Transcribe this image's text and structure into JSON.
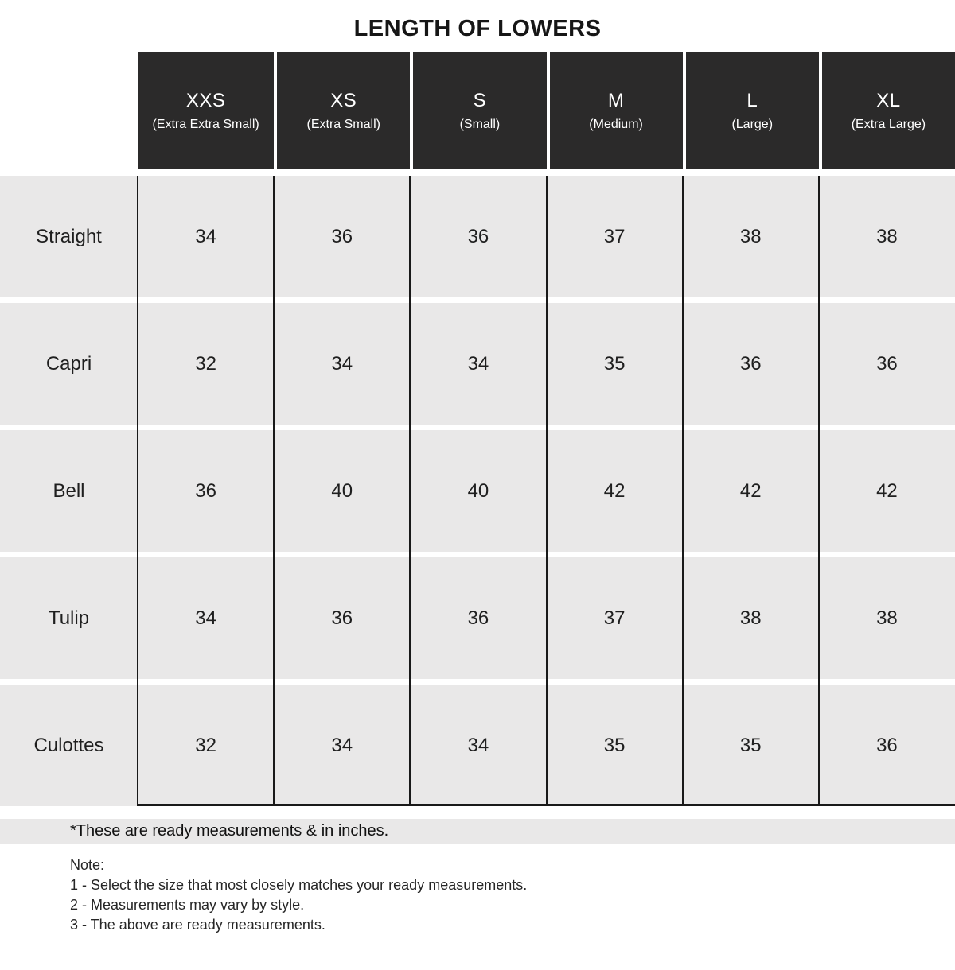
{
  "title": "LENGTH OF LOWERS",
  "table": {
    "columns": [
      {
        "size": "XXS",
        "full": "(Extra Extra Small)"
      },
      {
        "size": "XS",
        "full": "(Extra Small)"
      },
      {
        "size": "S",
        "full": "(Small)"
      },
      {
        "size": "M",
        "full": "(Medium)"
      },
      {
        "size": "L",
        "full": "(Large)"
      },
      {
        "size": "XL",
        "full": "(Extra Large)"
      }
    ],
    "rows": [
      {
        "label": "Straight",
        "values": [
          34,
          36,
          36,
          37,
          38,
          38
        ]
      },
      {
        "label": "Capri",
        "values": [
          32,
          34,
          34,
          35,
          36,
          36
        ]
      },
      {
        "label": "Bell",
        "values": [
          36,
          40,
          40,
          42,
          42,
          42
        ]
      },
      {
        "label": "Tulip",
        "values": [
          34,
          36,
          36,
          37,
          38,
          38
        ]
      },
      {
        "label": "Culottes",
        "values": [
          32,
          34,
          34,
          35,
          35,
          36
        ]
      }
    ]
  },
  "footnote": "*These are ready measurements & in inches.",
  "notes": {
    "heading": "Note:",
    "items": [
      "1 - Select the size that most closely matches your ready measurements.",
      "2 - Measurements may vary by style.",
      "3 - The above are ready measurements."
    ]
  },
  "colors": {
    "header_bg": "#2b2a2a",
    "cell_bg": "#e9e8e8",
    "divider_line": "#191919",
    "text": "#1f1f1f"
  },
  "chart_data": {
    "type": "table",
    "title": "LENGTH OF LOWERS",
    "unit": "inches",
    "categories": [
      "XXS",
      "XS",
      "S",
      "M",
      "L",
      "XL"
    ],
    "series": [
      {
        "name": "Straight",
        "values": [
          34,
          36,
          36,
          37,
          38,
          38
        ]
      },
      {
        "name": "Capri",
        "values": [
          32,
          34,
          34,
          35,
          36,
          36
        ]
      },
      {
        "name": "Bell",
        "values": [
          36,
          40,
          40,
          42,
          42,
          42
        ]
      },
      {
        "name": "Tulip",
        "values": [
          34,
          36,
          36,
          37,
          38,
          38
        ]
      },
      {
        "name": "Culottes",
        "values": [
          32,
          34,
          34,
          35,
          35,
          36
        ]
      }
    ]
  }
}
